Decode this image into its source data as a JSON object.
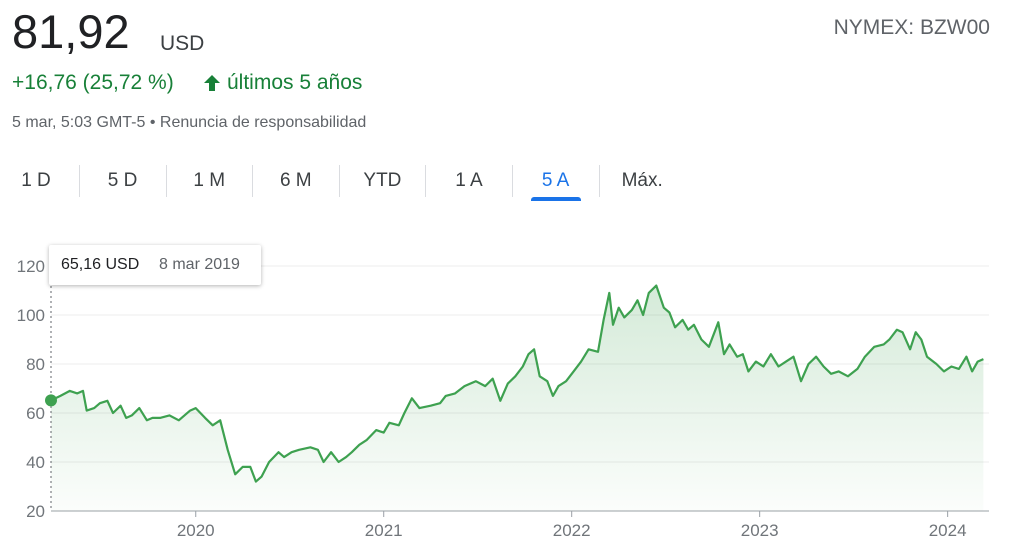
{
  "header": {
    "price": "81,92",
    "currency": "USD",
    "symbol": "NYMEX: BZW00",
    "change": "+16,76 (25,72 %)",
    "period": "últimos 5 años",
    "timestamp": "5 mar, 5:03 GMT-5",
    "separator": "•",
    "disclaimer": "Renuncia de responsabilidad"
  },
  "tabs": {
    "items": [
      "1 D",
      "5 D",
      "1 M",
      "6 M",
      "YTD",
      "1 A",
      "5 A",
      "Máx."
    ],
    "selected": 6
  },
  "tooltip": {
    "value": "65,16 USD",
    "date": "8 mar 2019"
  },
  "chart_data": {
    "type": "line",
    "color": "#3ea150",
    "grid": true,
    "xlim": [
      2019.23,
      2024.22
    ],
    "xticks": [
      2020,
      2021,
      2022,
      2023,
      2024
    ],
    "ylim": [
      20,
      120
    ],
    "yticks": [
      20,
      40,
      60,
      80,
      100,
      120
    ],
    "x": [
      2019.23,
      2019.28,
      2019.33,
      2019.37,
      2019.4,
      2019.42,
      2019.46,
      2019.49,
      2019.53,
      2019.56,
      2019.6,
      2019.63,
      2019.66,
      2019.7,
      2019.74,
      2019.77,
      2019.81,
      2019.86,
      2019.91,
      2019.97,
      2020.0,
      2020.05,
      2020.09,
      2020.13,
      2020.17,
      2020.21,
      2020.25,
      2020.29,
      2020.32,
      2020.35,
      2020.39,
      2020.44,
      2020.47,
      2020.51,
      2020.55,
      2020.61,
      2020.65,
      2020.68,
      2020.72,
      2020.76,
      2020.8,
      2020.83,
      2020.87,
      2020.91,
      2020.96,
      2021.0,
      2021.03,
      2021.08,
      2021.11,
      2021.15,
      2021.19,
      2021.25,
      2021.3,
      2021.33,
      2021.38,
      2021.43,
      2021.49,
      2021.54,
      2021.58,
      2021.62,
      2021.66,
      2021.7,
      2021.74,
      2021.77,
      2021.8,
      2021.83,
      2021.87,
      2021.9,
      2021.93,
      2021.97,
      2022.01,
      2022.05,
      2022.09,
      2022.14,
      2022.17,
      2022.2,
      2022.22,
      2022.25,
      2022.28,
      2022.32,
      2022.35,
      2022.38,
      2022.41,
      2022.45,
      2022.49,
      2022.52,
      2022.55,
      2022.59,
      2022.62,
      2022.65,
      2022.69,
      2022.73,
      2022.78,
      2022.81,
      2022.84,
      2022.88,
      2022.91,
      2022.94,
      2022.98,
      2023.02,
      2023.06,
      2023.1,
      2023.14,
      2023.18,
      2023.22,
      2023.26,
      2023.3,
      2023.34,
      2023.38,
      2023.42,
      2023.47,
      2023.52,
      2023.56,
      2023.61,
      2023.66,
      2023.69,
      2023.73,
      2023.76,
      2023.8,
      2023.83,
      2023.86,
      2023.89,
      2023.94,
      2023.98,
      2024.02,
      2024.06,
      2024.1,
      2024.13,
      2024.16,
      2024.19
    ],
    "values": [
      65.16,
      67,
      69,
      68,
      69,
      61,
      62,
      64,
      65,
      60,
      63,
      58,
      59,
      62,
      57,
      58,
      58,
      59,
      57,
      61,
      62,
      58,
      55,
      57,
      45,
      35,
      38,
      38,
      32,
      34,
      40,
      44,
      42,
      44,
      45,
      46,
      45,
      40,
      44,
      40,
      42,
      44,
      47,
      49,
      53,
      52,
      56,
      55,
      60,
      66,
      62,
      63,
      64,
      67,
      68,
      71,
      73,
      71,
      74,
      65,
      72,
      75,
      79,
      84,
      86,
      75,
      73,
      67,
      71,
      73,
      77,
      81,
      86,
      85,
      98,
      109,
      96,
      103,
      99,
      102,
      106,
      100,
      109,
      112,
      103,
      101,
      95,
      98,
      94,
      96,
      90,
      87,
      97,
      84,
      88,
      83,
      84,
      77,
      81,
      79,
      84,
      79,
      81,
      83,
      73,
      80,
      83,
      79,
      76,
      77,
      75,
      78,
      83,
      87,
      88,
      90,
      94,
      93,
      86,
      93,
      90,
      83,
      80,
      77,
      79,
      78,
      83,
      77,
      81,
      82
    ]
  }
}
